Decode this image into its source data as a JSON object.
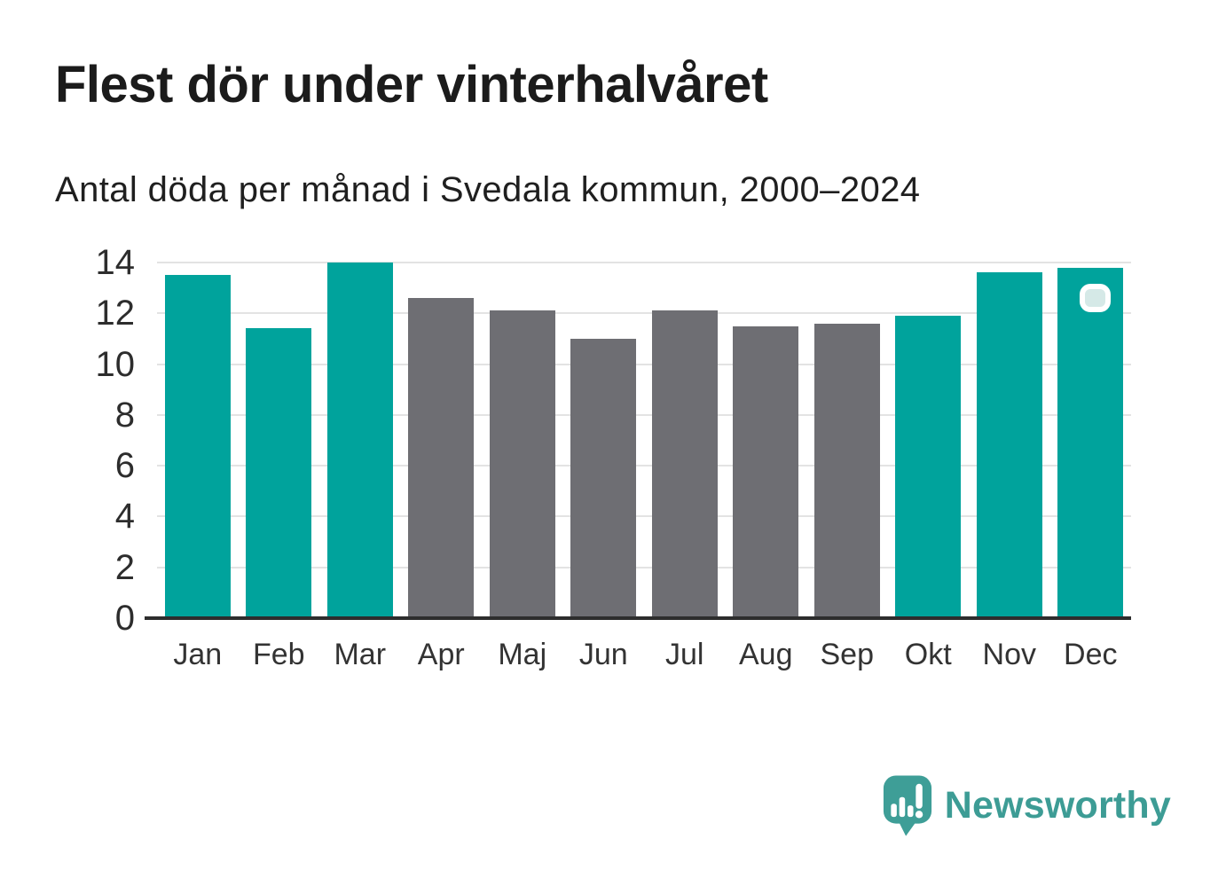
{
  "header": {
    "title": "Flest dör under vinterhalvåret",
    "subtitle": "Antal döda per månad i Svedala kommun, 2000–2024"
  },
  "chart_data": {
    "type": "bar",
    "title": "Flest dör under vinterhalvåret",
    "subtitle": "Antal döda per månad i Svedala kommun, 2000–2024",
    "categories": [
      "Jan",
      "Feb",
      "Mar",
      "Apr",
      "Maj",
      "Jun",
      "Jul",
      "Aug",
      "Sep",
      "Okt",
      "Nov",
      "Dec"
    ],
    "values": [
      13.5,
      11.4,
      14,
      12.6,
      12.1,
      11,
      12.1,
      11.5,
      11.6,
      11.9,
      13.6,
      13.8
    ],
    "bar_palette": [
      "highlight",
      "highlight",
      "highlight",
      "muted",
      "muted",
      "muted",
      "muted",
      "muted",
      "muted",
      "highlight",
      "highlight",
      "highlight"
    ],
    "colors": {
      "highlight": "#00a39c",
      "muted": "#6e6e73"
    },
    "xlabel": "",
    "ylabel": "",
    "ylim": [
      0,
      14
    ],
    "yticks": [
      0,
      2,
      4,
      6,
      8,
      10,
      12,
      14
    ],
    "grid": true,
    "legend": false,
    "gridline_color": "#e3e3e3",
    "axis_color": "#2d2d2d"
  },
  "branding": {
    "logo_text": "Newsworthy",
    "logo_color": "#3d9c95"
  },
  "overlay": {
    "highlight_square": {
      "fill": "#d5e9e7",
      "border": "#ffffff"
    }
  }
}
